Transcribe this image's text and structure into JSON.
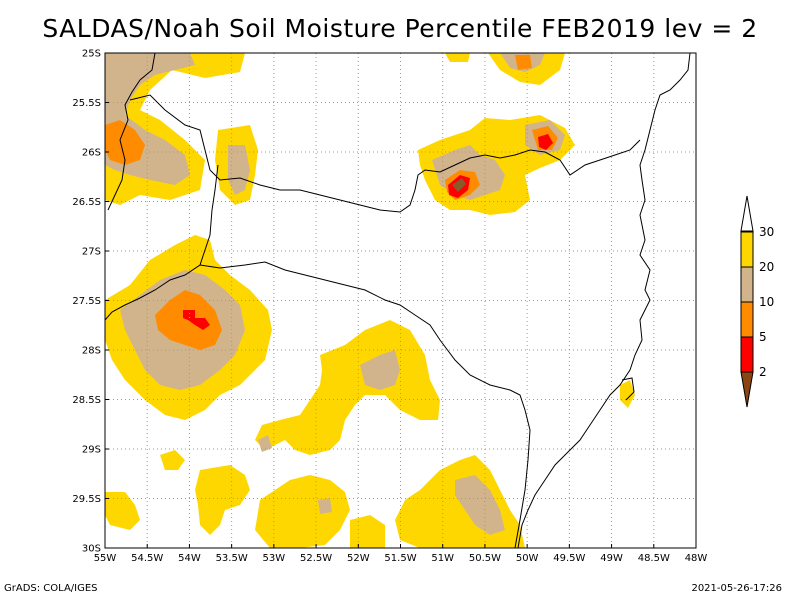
{
  "title": "SALDAS/Noah Soil Moisture Percentile FEB2019 lev = 2",
  "footer": {
    "left": "GrADS: COLA/IGES",
    "right": "2021-05-26-17:26"
  },
  "map": {
    "lon_range": [
      -55,
      -48
    ],
    "lat_range": [
      -30,
      -25
    ],
    "x_ticks": [
      {
        "value": -55,
        "label": "55W"
      },
      {
        "value": -54.5,
        "label": "54.5W"
      },
      {
        "value": -54,
        "label": "54W"
      },
      {
        "value": -53.5,
        "label": "53.5W"
      },
      {
        "value": -53,
        "label": "53W"
      },
      {
        "value": -52.5,
        "label": "52.5W"
      },
      {
        "value": -52,
        "label": "52W"
      },
      {
        "value": -51.5,
        "label": "51.5W"
      },
      {
        "value": -51,
        "label": "51W"
      },
      {
        "value": -50.5,
        "label": "50.5W"
      },
      {
        "value": -50,
        "label": "50W"
      },
      {
        "value": -49.5,
        "label": "49.5W"
      },
      {
        "value": -49,
        "label": "49W"
      },
      {
        "value": -48.5,
        "label": "48.5W"
      },
      {
        "value": -48,
        "label": "48W"
      }
    ],
    "y_ticks": [
      {
        "value": -25,
        "label": "25S"
      },
      {
        "value": -25.5,
        "label": "25.5S"
      },
      {
        "value": -26,
        "label": "26S"
      },
      {
        "value": -26.5,
        "label": "26.5S"
      },
      {
        "value": -27,
        "label": "27S"
      },
      {
        "value": -27.5,
        "label": "27.5S"
      },
      {
        "value": -28,
        "label": "28S"
      },
      {
        "value": -28.5,
        "label": "28.5S"
      },
      {
        "value": -29,
        "label": "29S"
      },
      {
        "value": -29.5,
        "label": "29.5S"
      },
      {
        "value": -30,
        "label": "30S"
      }
    ],
    "grid": true
  },
  "legend": {
    "bins": [
      {
        "color": "#8b4513",
        "label": "2"
      },
      {
        "color": "#ff0000",
        "label": "5"
      },
      {
        "color": "#ff8c00",
        "label": "10"
      },
      {
        "color": "#d2b48c",
        "label": "20"
      },
      {
        "color": "#ffd700",
        "label": "30"
      },
      {
        "color": "#ffffff",
        "label": ""
      }
    ]
  },
  "colors": {
    "cat30": "#ffd700",
    "cat20": "#d2b48c",
    "cat10": "#ff8c00",
    "cat5": "#ff0000",
    "cat2": "#8b5a2b"
  }
}
